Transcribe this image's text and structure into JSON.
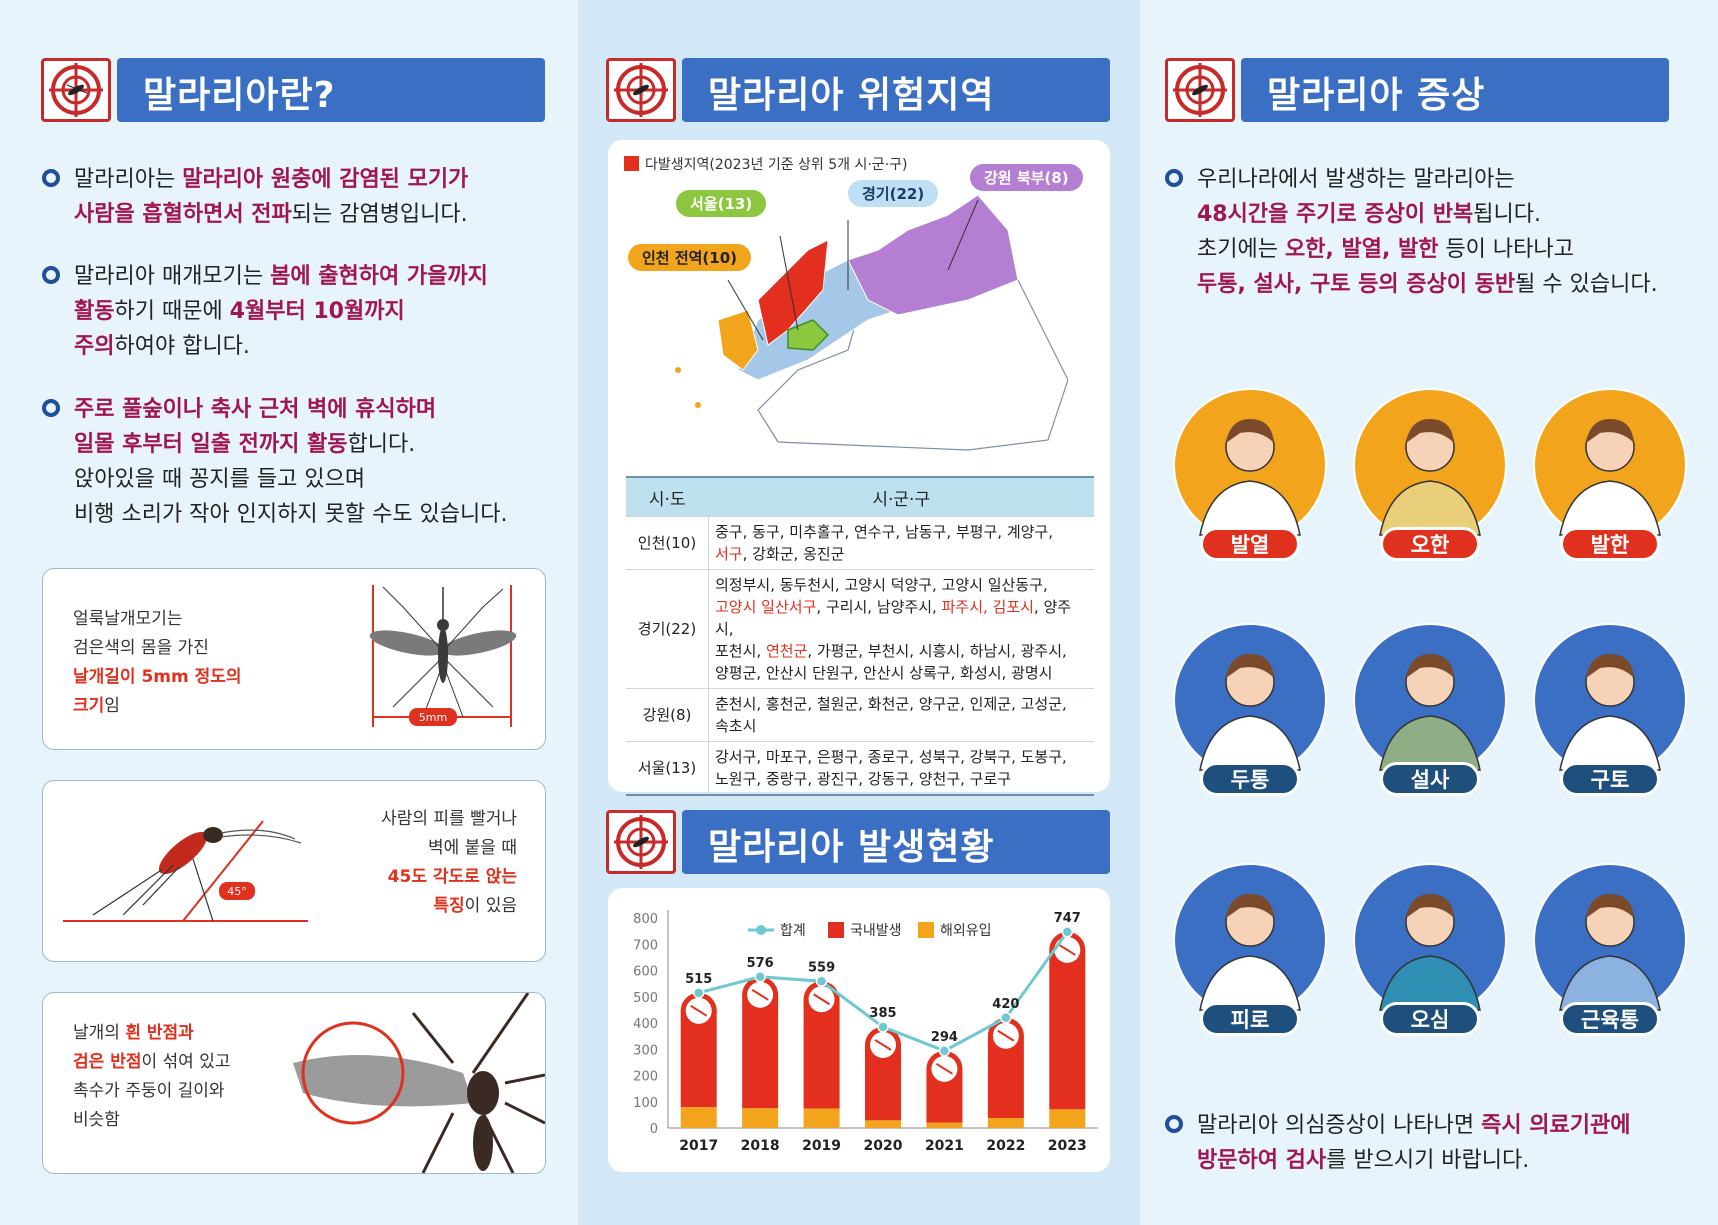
{
  "col1": {
    "title": "말라리아란?",
    "b1": {
      "l1a": "말라리아는 ",
      "l1b": "말라리아 원충에 감염된 모기가",
      "l2a": "사람을 흡혈하면서 전파",
      "l2b": "되는 감염병입니다."
    },
    "b2": {
      "l1a": "말라리아 매개모기는 ",
      "l1b": "봄에 출현하여 가을까지",
      "l2a": "활동",
      "l2b": "하기 때문에 ",
      "l2c": "4월부터 10월까지",
      "l3a": "주의",
      "l3b": "하여야 합니다."
    },
    "b3": {
      "l1": "주로 풀숲이나 축사 근처 벽에 휴식하며",
      "l2a": "일몰 후부터 일출 전까지 활동",
      "l2b": "합니다.",
      "l3": "앉아있을 때 꽁지를 들고 있으며",
      "l4": "비행 소리가 작아 인지하지 못할 수도 있습니다."
    },
    "card1": {
      "l1": "얼룩날개모기는",
      "l2": "검은색의 몸을 가진",
      "l3": "날개길이 5mm 정도의",
      "l4a": "크기",
      "l4b": "임",
      "scale": "5mm"
    },
    "card2": {
      "l1": "사람의 피를 빨거나",
      "l2": "벽에 붙을 때",
      "l3": "45도 각도로 앉는",
      "l4a": "특징",
      "l4b": "이 있음",
      "angle": "45°"
    },
    "card3": {
      "l1a": "날개의 ",
      "l1b": "흰 반점과",
      "l2a": "검은 반점",
      "l2b": "이 섞여 있고",
      "l3": "촉수가 주둥이 길이와",
      "l4": "비슷함"
    }
  },
  "col2": {
    "title_risk": "말라리아 위험지역",
    "map_legend": "다발생지역(2023년 기준 상위 5개 시·군·구)",
    "map_labels": {
      "gangwon": "강원 북부(8)",
      "gyeonggi": "경기(22)",
      "seoul": "서울(13)",
      "incheon": "인천 전역(10)"
    },
    "table": {
      "h1": "시·도",
      "h2": "시·군·구",
      "rows": [
        {
          "prov": "인천(10)",
          "a": "중구, 동구, 미추홀구, 연수구, 남동구, 부평구, 계양구,",
          "b_red": "서구",
          "b": ", 강화군, 옹진군"
        },
        {
          "prov": "경기(22)",
          "a": "의정부시, 동두천시, 고양시 덕양구, 고양시 일산동구,",
          "b_red": "고양시 일산서구",
          "b": ", 구리시, 남양주시, ",
          "b_red2": "파주시, 김포시",
          "b2": ", 양주시,",
          "c": "포천시, ",
          "c_red": "연천군",
          "c2": ", 가평군, 부천시, 시흥시, 하남시, 광주시,",
          "d": "양평군, 안산시 단원구, 안산시 상록구, 화성시, 광명시"
        },
        {
          "prov": "강원(8)",
          "a": "춘천시, 홍천군, 철원군, 화천군, 양구군, 인제군, 고성군,",
          "b": "속초시"
        },
        {
          "prov": "서울(13)",
          "a": "강서구, 마포구, 은평구, 종로구, 성북구, 강북구, 도봉구,",
          "b": "노원구, 중랑구, 광진구, 강동구, 양천구, 구로구"
        }
      ]
    },
    "title_status": "말라리아 발생현황"
  },
  "chart_data": {
    "type": "bar",
    "title": "",
    "categories": [
      "2017",
      "2018",
      "2019",
      "2020",
      "2021",
      "2022",
      "2023"
    ],
    "series": [
      {
        "name": "합계",
        "kind": "line",
        "values": [
          515,
          576,
          559,
          385,
          294,
          420,
          747
        ]
      },
      {
        "name": "국내발생",
        "kind": "stacked-bar",
        "values": [
          436,
          501,
          485,
          356,
          274,
          382,
          676
        ]
      },
      {
        "name": "해외유입",
        "kind": "stacked-bar",
        "values": [
          79,
          75,
          74,
          29,
          20,
          38,
          71
        ]
      }
    ],
    "yticks": [
      "0",
      "100",
      "200",
      "300",
      "400",
      "500",
      "600",
      "700",
      "800"
    ],
    "ylim": [
      0,
      800
    ],
    "legend_position": "top",
    "colors": {
      "total": "#6ec8cf",
      "domestic": "#e22f1e",
      "imported": "#f2a51c"
    }
  },
  "col3": {
    "title": "말라리아 증상",
    "b1": {
      "l1": "우리나라에서 발생하는 말라리아는",
      "l2a": "48시간을 주기로 증상이 반복",
      "l2b": "됩니다.",
      "l3a": "초기에는 ",
      "l3b": "오한, 발열, 발한",
      "l3c": " 등이 나타나고",
      "l4a": "두통, 설사, 구토 등의 증상이 동반",
      "l4b": "될 수 있습니다."
    },
    "symptoms": [
      "발열",
      "오한",
      "발한",
      "두통",
      "설사",
      "구토",
      "피로",
      "오심",
      "근육통"
    ],
    "b2": {
      "l1a": "말라리아 의심증상이 나타나면 ",
      "l1b": "즉시 의료기관에",
      "l2a": "방문하여 검사",
      "l2b": "를 받으시기 바랍니다."
    }
  },
  "colors": {
    "accent_blue": "#3a6fc4",
    "highlight": "#a01654",
    "red": "#e0301e"
  }
}
